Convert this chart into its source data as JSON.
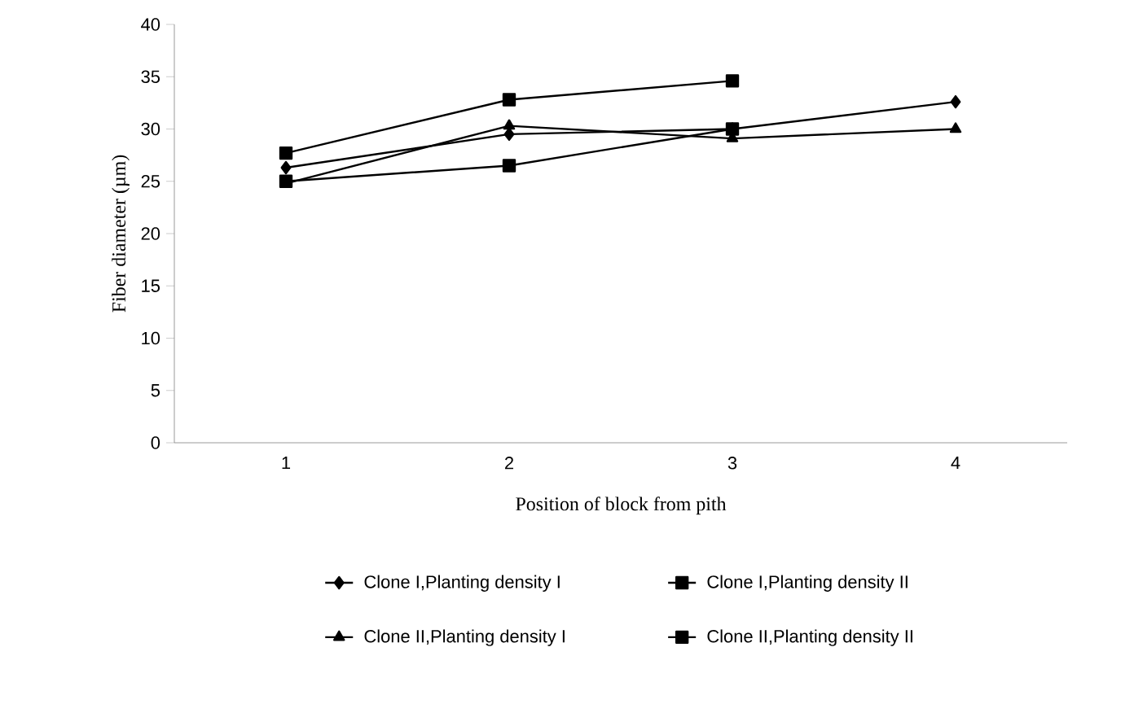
{
  "chart_data": {
    "type": "line",
    "xlabel": "Position of block from pith",
    "ylabel": "Fiber diameter (µm)",
    "categories": [
      "1",
      "2",
      "3",
      "4"
    ],
    "series": [
      {
        "name": "Clone I,Planting density I",
        "color": "#000000",
        "marker": "diamond",
        "values": [
          26.3,
          29.5,
          30,
          32.6
        ]
      },
      {
        "name": "Clone I,Planting density II",
        "color": "#000000",
        "marker": "square",
        "values": [
          25,
          26.5,
          30,
          null
        ]
      },
      {
        "name": "Clone II,Planting density I",
        "color": "#000000",
        "marker": "triangle",
        "values": [
          24.8,
          30.3,
          29.1,
          30
        ]
      },
      {
        "name": "Clone II,Planting density II",
        "color": "#000000",
        "marker": "square",
        "values": [
          27.7,
          32.8,
          34.6,
          null
        ]
      }
    ],
    "ylim": [
      0,
      40
    ],
    "yticks": [
      0,
      5,
      10,
      15,
      20,
      25,
      30,
      35,
      40
    ],
    "grid": false,
    "legend": "bottom",
    "line_style": "solid"
  }
}
